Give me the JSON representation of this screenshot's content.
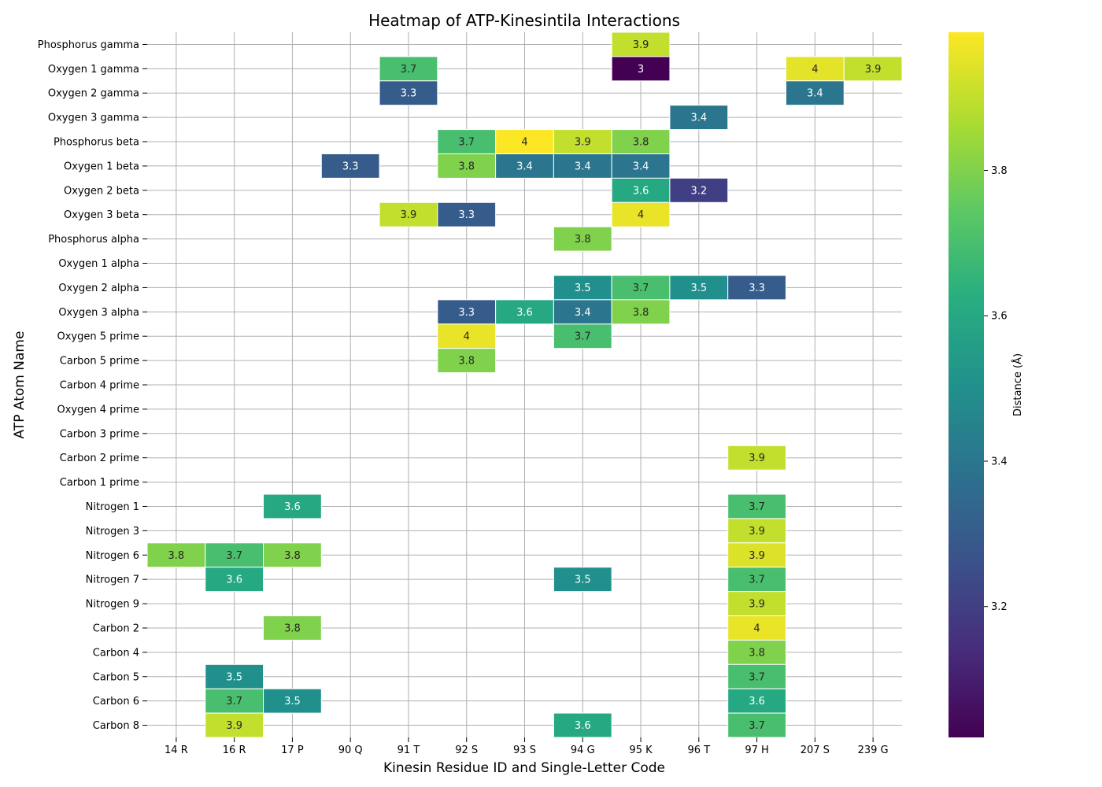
{
  "chart_data": {
    "type": "heatmap",
    "title": "Heatmap of ATP-Kinesintila Interactions",
    "xlabel": "Kinesin Residue ID and Single-Letter Code",
    "ylabel": "ATP Atom Name",
    "colorbar_label": "Distance (Å)",
    "colormap": "viridis",
    "vlim": [
      3.02,
      3.99
    ],
    "colorbar_ticks": [
      "3.2",
      "3.4",
      "3.6",
      "3.8"
    ],
    "grid": true,
    "x_categories": [
      "14 R",
      "16 R",
      "17 P",
      "90 Q",
      "91 T",
      "92 S",
      "93 S",
      "94 G",
      "95 K",
      "96 T",
      "97 H",
      "207 S",
      "239 G"
    ],
    "y_categories": [
      "Phosphorus gamma",
      "Oxygen 1 gamma",
      "Oxygen 2 gamma",
      "Oxygen 3 gamma",
      "Phosphorus beta",
      "Oxygen 1 beta",
      "Oxygen 2 beta",
      "Oxygen 3 beta",
      "Phosphorus alpha",
      "Oxygen 1 alpha",
      "Oxygen 2 alpha",
      "Oxygen 3 alpha",
      "Oxygen 5 prime",
      "Carbon 5 prime",
      "Carbon 4 prime",
      "Oxygen 4 prime",
      "Carbon 3 prime",
      "Carbon 2 prime",
      "Carbon 1 prime",
      "Nitrogen 1",
      "Nitrogen 3",
      "Nitrogen 6",
      "Nitrogen 7",
      "Nitrogen 9",
      "Carbon 2",
      "Carbon 4",
      "Carbon 5",
      "Carbon 6",
      "Carbon 8"
    ],
    "cells": [
      {
        "row": "Phosphorus gamma",
        "col": "95 K",
        "value": 3.9,
        "label": "3.9"
      },
      {
        "row": "Oxygen 1 gamma",
        "col": "91 T",
        "value": 3.7,
        "label": "3.7"
      },
      {
        "row": "Oxygen 1 gamma",
        "col": "95 K",
        "value": 3.02,
        "label": "3"
      },
      {
        "row": "Oxygen 1 gamma",
        "col": "207 S",
        "value": 3.95,
        "label": "4"
      },
      {
        "row": "Oxygen 1 gamma",
        "col": "239 G",
        "value": 3.9,
        "label": "3.9"
      },
      {
        "row": "Oxygen 2 gamma",
        "col": "91 T",
        "value": 3.3,
        "label": "3.3"
      },
      {
        "row": "Oxygen 2 gamma",
        "col": "207 S",
        "value": 3.4,
        "label": "3.4"
      },
      {
        "row": "Oxygen 3 gamma",
        "col": "96 T",
        "value": 3.4,
        "label": "3.4"
      },
      {
        "row": "Phosphorus beta",
        "col": "92 S",
        "value": 3.7,
        "label": "3.7"
      },
      {
        "row": "Phosphorus beta",
        "col": "93 S",
        "value": 3.99,
        "label": "4"
      },
      {
        "row": "Phosphorus beta",
        "col": "94 G",
        "value": 3.9,
        "label": "3.9"
      },
      {
        "row": "Phosphorus beta",
        "col": "95 K",
        "value": 3.8,
        "label": "3.8"
      },
      {
        "row": "Oxygen 1 beta",
        "col": "90 Q",
        "value": 3.3,
        "label": "3.3"
      },
      {
        "row": "Oxygen 1 beta",
        "col": "92 S",
        "value": 3.8,
        "label": "3.8"
      },
      {
        "row": "Oxygen 1 beta",
        "col": "93 S",
        "value": 3.4,
        "label": "3.4"
      },
      {
        "row": "Oxygen 1 beta",
        "col": "94 G",
        "value": 3.4,
        "label": "3.4"
      },
      {
        "row": "Oxygen 1 beta",
        "col": "95 K",
        "value": 3.4,
        "label": "3.4"
      },
      {
        "row": "Oxygen 2 beta",
        "col": "95 K",
        "value": 3.6,
        "label": "3.6"
      },
      {
        "row": "Oxygen 2 beta",
        "col": "96 T",
        "value": 3.2,
        "label": "3.2"
      },
      {
        "row": "Oxygen 3 beta",
        "col": "91 T",
        "value": 3.9,
        "label": "3.9"
      },
      {
        "row": "Oxygen 3 beta",
        "col": "92 S",
        "value": 3.3,
        "label": "3.3"
      },
      {
        "row": "Oxygen 3 beta",
        "col": "95 K",
        "value": 3.96,
        "label": "4"
      },
      {
        "row": "Phosphorus alpha",
        "col": "94 G",
        "value": 3.8,
        "label": "3.8"
      },
      {
        "row": "Oxygen 2 alpha",
        "col": "94 G",
        "value": 3.5,
        "label": "3.5"
      },
      {
        "row": "Oxygen 2 alpha",
        "col": "95 K",
        "value": 3.7,
        "label": "3.7"
      },
      {
        "row": "Oxygen 2 alpha",
        "col": "96 T",
        "value": 3.5,
        "label": "3.5"
      },
      {
        "row": "Oxygen 2 alpha",
        "col": "97 H",
        "value": 3.3,
        "label": "3.3"
      },
      {
        "row": "Oxygen 3 alpha",
        "col": "92 S",
        "value": 3.3,
        "label": "3.3"
      },
      {
        "row": "Oxygen 3 alpha",
        "col": "93 S",
        "value": 3.6,
        "label": "3.6"
      },
      {
        "row": "Oxygen 3 alpha",
        "col": "94 G",
        "value": 3.4,
        "label": "3.4"
      },
      {
        "row": "Oxygen 3 alpha",
        "col": "95 K",
        "value": 3.8,
        "label": "3.8"
      },
      {
        "row": "Oxygen 5 prime",
        "col": "92 S",
        "value": 3.96,
        "label": "4"
      },
      {
        "row": "Oxygen 5 prime",
        "col": "94 G",
        "value": 3.7,
        "label": "3.7"
      },
      {
        "row": "Carbon 5 prime",
        "col": "92 S",
        "value": 3.8,
        "label": "3.8"
      },
      {
        "row": "Carbon 2 prime",
        "col": "97 H",
        "value": 3.9,
        "label": "3.9"
      },
      {
        "row": "Nitrogen 1",
        "col": "17 P",
        "value": 3.6,
        "label": "3.6"
      },
      {
        "row": "Nitrogen 1",
        "col": "97 H",
        "value": 3.7,
        "label": "3.7"
      },
      {
        "row": "Nitrogen 3",
        "col": "97 H",
        "value": 3.9,
        "label": "3.9"
      },
      {
        "row": "Nitrogen 6",
        "col": "14 R",
        "value": 3.8,
        "label": "3.8"
      },
      {
        "row": "Nitrogen 6",
        "col": "16 R",
        "value": 3.7,
        "label": "3.7"
      },
      {
        "row": "Nitrogen 6",
        "col": "17 P",
        "value": 3.8,
        "label": "3.8"
      },
      {
        "row": "Nitrogen 6",
        "col": "97 H",
        "value": 3.94,
        "label": "3.9"
      },
      {
        "row": "Nitrogen 7",
        "col": "16 R",
        "value": 3.6,
        "label": "3.6"
      },
      {
        "row": "Nitrogen 7",
        "col": "94 G",
        "value": 3.5,
        "label": "3.5"
      },
      {
        "row": "Nitrogen 7",
        "col": "97 H",
        "value": 3.7,
        "label": "3.7"
      },
      {
        "row": "Nitrogen 9",
        "col": "97 H",
        "value": 3.9,
        "label": "3.9"
      },
      {
        "row": "Carbon 2",
        "col": "17 P",
        "value": 3.8,
        "label": "3.8"
      },
      {
        "row": "Carbon 2",
        "col": "97 H",
        "value": 3.96,
        "label": "4"
      },
      {
        "row": "Carbon 4",
        "col": "97 H",
        "value": 3.8,
        "label": "3.8"
      },
      {
        "row": "Carbon 5",
        "col": "16 R",
        "value": 3.5,
        "label": "3.5"
      },
      {
        "row": "Carbon 5",
        "col": "97 H",
        "value": 3.7,
        "label": "3.7"
      },
      {
        "row": "Carbon 6",
        "col": "16 R",
        "value": 3.7,
        "label": "3.7"
      },
      {
        "row": "Carbon 6",
        "col": "17 P",
        "value": 3.5,
        "label": "3.5"
      },
      {
        "row": "Carbon 6",
        "col": "97 H",
        "value": 3.6,
        "label": "3.6"
      },
      {
        "row": "Carbon 8",
        "col": "16 R",
        "value": 3.9,
        "label": "3.9"
      },
      {
        "row": "Carbon 8",
        "col": "94 G",
        "value": 3.6,
        "label": "3.6"
      },
      {
        "row": "Carbon 8",
        "col": "97 H",
        "value": 3.7,
        "label": "3.7"
      }
    ]
  }
}
